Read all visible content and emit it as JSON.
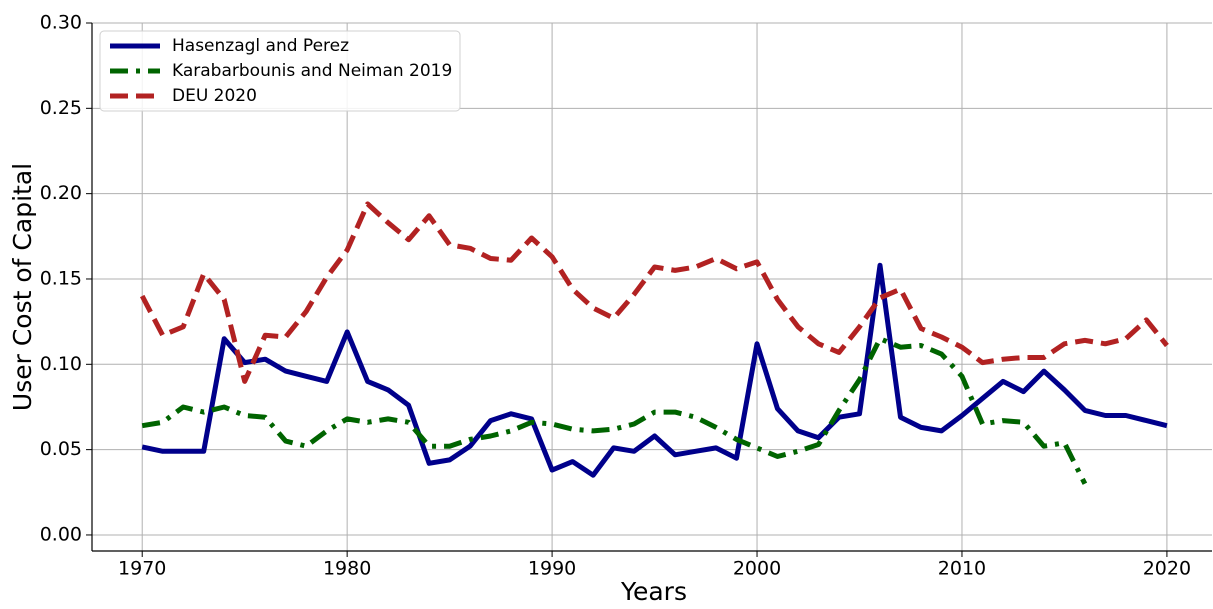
{
  "chart_data": {
    "type": "line",
    "xlabel": "Years",
    "ylabel": "User Cost of Capital",
    "x": [
      1970,
      1971,
      1972,
      1973,
      1974,
      1975,
      1976,
      1977,
      1978,
      1979,
      1980,
      1981,
      1982,
      1983,
      1984,
      1985,
      1986,
      1987,
      1988,
      1989,
      1990,
      1991,
      1992,
      1993,
      1994,
      1995,
      1996,
      1997,
      1998,
      1999,
      2000,
      2001,
      2002,
      2003,
      2004,
      2005,
      2006,
      2007,
      2008,
      2009,
      2010,
      2011,
      2012,
      2013,
      2014,
      2015,
      2016,
      2017,
      2018,
      2019,
      2020
    ],
    "series": [
      {
        "name": "Hasenzagl and Perez",
        "color": "#00008b",
        "linestyle": "solid",
        "values": [
          0.0516,
          0.049,
          0.049,
          0.049,
          0.115,
          0.101,
          0.103,
          0.096,
          0.093,
          0.09,
          0.119,
          0.09,
          0.085,
          0.076,
          0.042,
          0.044,
          0.052,
          0.067,
          0.071,
          0.068,
          0.038,
          0.043,
          0.035,
          0.051,
          0.049,
          0.058,
          0.047,
          0.049,
          0.051,
          0.045,
          0.112,
          0.074,
          0.061,
          0.057,
          0.069,
          0.071,
          0.158,
          0.069,
          0.063,
          0.061,
          0.07,
          0.08,
          0.09,
          0.084,
          0.096,
          0.085,
          0.073,
          0.07,
          0.07,
          0.067,
          0.064
        ]
      },
      {
        "name": "Karabarbounis and Neiman 2019",
        "color": "#006400",
        "linestyle": "dashdot",
        "values": [
          0.064,
          0.066,
          0.075,
          0.072,
          0.075,
          0.07,
          0.069,
          0.055,
          0.052,
          0.061,
          0.068,
          0.066,
          0.068,
          0.066,
          0.052,
          0.052,
          0.056,
          0.058,
          0.061,
          0.066,
          0.065,
          0.062,
          0.061,
          0.062,
          0.065,
          0.072,
          0.072,
          0.069,
          0.063,
          0.056,
          0.051,
          0.046,
          0.049,
          0.053,
          0.073,
          0.091,
          0.115,
          0.11,
          0.111,
          0.106,
          0.093,
          0.065,
          0.067,
          0.066,
          0.052,
          0.054,
          0.03,
          null,
          null,
          null,
          null
        ]
      },
      {
        "name": "DEU 2020",
        "color": "#b22222",
        "linestyle": "dashed",
        "values": [
          0.14,
          0.117,
          0.122,
          0.153,
          0.138,
          0.09,
          0.117,
          0.116,
          0.131,
          0.151,
          0.167,
          0.194,
          0.183,
          0.173,
          0.187,
          0.17,
          0.168,
          0.162,
          0.161,
          0.174,
          0.163,
          0.144,
          0.133,
          0.127,
          0.141,
          0.157,
          0.155,
          0.157,
          0.162,
          0.156,
          0.16,
          0.138,
          0.122,
          0.112,
          0.107,
          0.122,
          0.139,
          0.144,
          0.121,
          0.116,
          0.11,
          0.101,
          0.103,
          0.104,
          0.104,
          0.112,
          0.114,
          0.112,
          0.115,
          0.126,
          0.111
        ]
      }
    ],
    "xlim": [
      1967.55,
      2022.2
    ],
    "xticks": [
      1970,
      1980,
      1990,
      2000,
      2010,
      2020
    ],
    "ylim": [
      -0.0094,
      0.3
    ],
    "yticks": [
      {
        "value": 0,
        "label": "0.00"
      },
      0.05,
      {
        "value": 0.1,
        "label": "0.10"
      },
      0.15,
      {
        "value": 0.2,
        "label": "0.20"
      },
      0.25,
      {
        "value": 0.3,
        "label": "0.30"
      }
    ],
    "grid": true,
    "legend": "upper left"
  }
}
